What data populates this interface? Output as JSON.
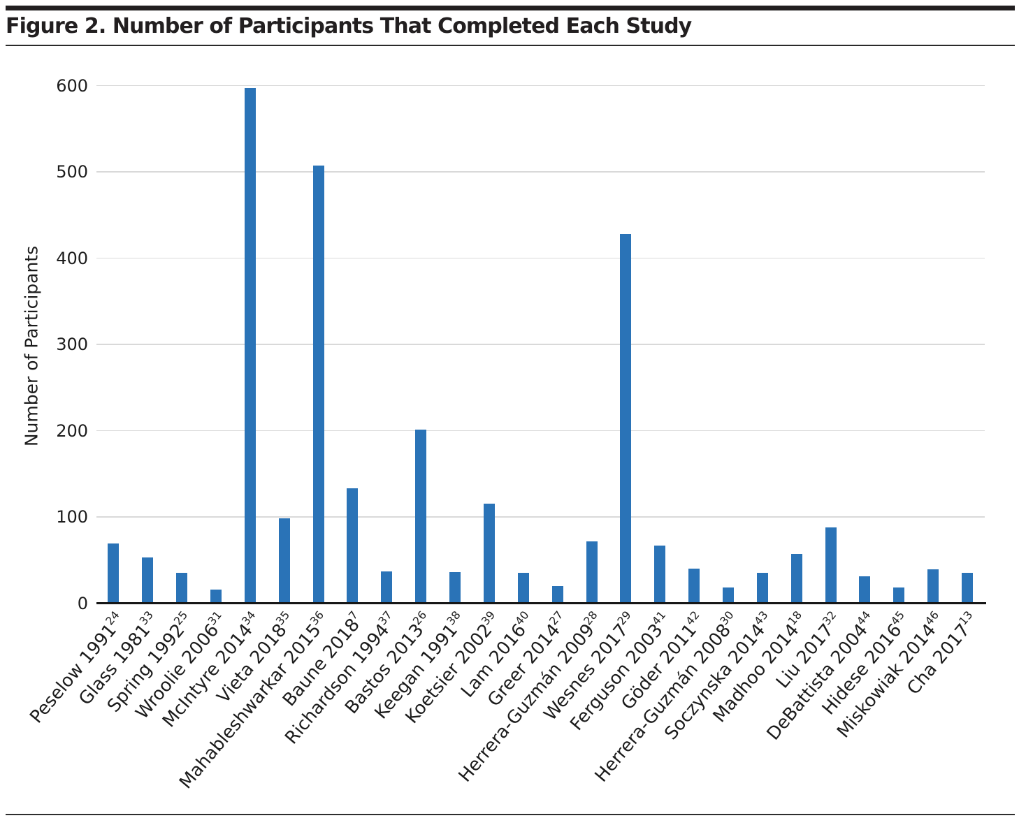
{
  "figure": {
    "title": "Figure 2. Number of Participants That Completed Each Study"
  },
  "chart_data": {
    "type": "bar",
    "title": "Figure 2. Number of Participants That Completed Each Study",
    "xlabel": "",
    "ylabel": "Number of Participants",
    "ylim": [
      0,
      600
    ],
    "yticks": [
      0,
      100,
      200,
      300,
      400,
      500,
      600
    ],
    "grid": "horizontal gridlines at each 100, light gray",
    "legend": "none",
    "bar_color": "#2a73b7",
    "categories": [
      "Peselow 1991",
      "Glass 1981",
      "Spring 1992",
      "Wroolie 2006",
      "McIntyre 2014",
      "Vieta 2018",
      "Mahableshwarkar 2015",
      "Baune 2018",
      "Richardson 1994",
      "Bastos 2013",
      "Keegan 1991",
      "Koetsier 2002",
      "Lam 2016",
      "Greer 2014",
      "Herrera-Guzmán 2009",
      "Wesnes 2017",
      "Ferguson 2003",
      "Göder 2011",
      "Herrera-Guzmán 2008",
      "Soczynska 2014",
      "Madhoo 2014",
      "Liu 2017",
      "DeBattista 2004",
      "Hidese 2016",
      "Miskowiak 2014",
      "Cha 2017"
    ],
    "citation_refs": [
      "24",
      "33",
      "25",
      "31",
      "34",
      "35",
      "36",
      "7",
      "37",
      "26",
      "38",
      "39",
      "40",
      "27",
      "28",
      "29",
      "41",
      "42",
      "30",
      "43",
      "18",
      "32",
      "44",
      "45",
      "46",
      "13"
    ],
    "values": [
      69,
      53,
      35,
      16,
      597,
      98,
      507,
      133,
      37,
      201,
      36,
      115,
      35,
      20,
      72,
      428,
      67,
      40,
      18,
      35,
      57,
      88,
      31,
      18,
      39,
      35
    ]
  },
  "colors": {
    "bar": "#2a73b7",
    "gridline": "#d9d9d9",
    "axis_line": "#161616",
    "text": "#1c1c1c",
    "rule": "#221f20",
    "background": "#ffffff"
  }
}
